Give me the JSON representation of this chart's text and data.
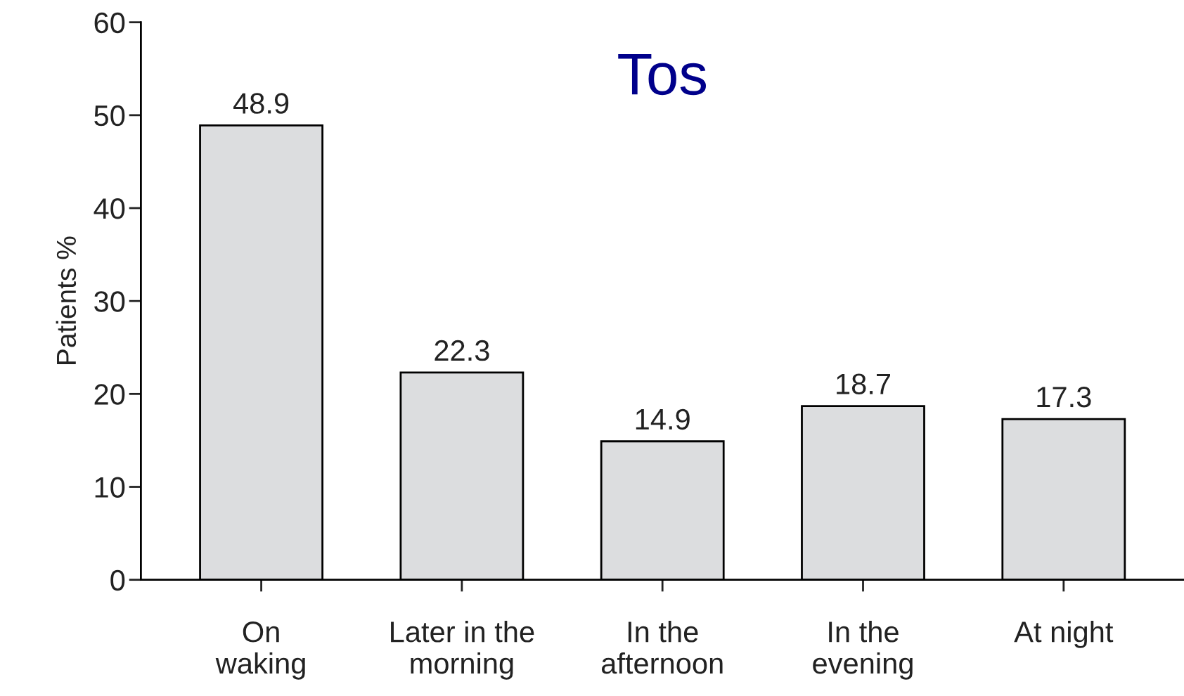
{
  "chart_data": {
    "type": "bar",
    "title": "Tos",
    "ylabel": "Patients %",
    "categories": [
      "On\nwaking",
      "Later in the\nmorning",
      "In the\nafternoon",
      "In the\nevening",
      "At night"
    ],
    "values": [
      48.9,
      22.3,
      14.9,
      18.7,
      17.3
    ],
    "color": "#dcdddf",
    "ylim": [
      0,
      60
    ],
    "yticks": [
      0,
      10,
      20,
      30,
      40,
      50,
      60
    ],
    "data_labels": true,
    "grid": false,
    "legend": false
  }
}
